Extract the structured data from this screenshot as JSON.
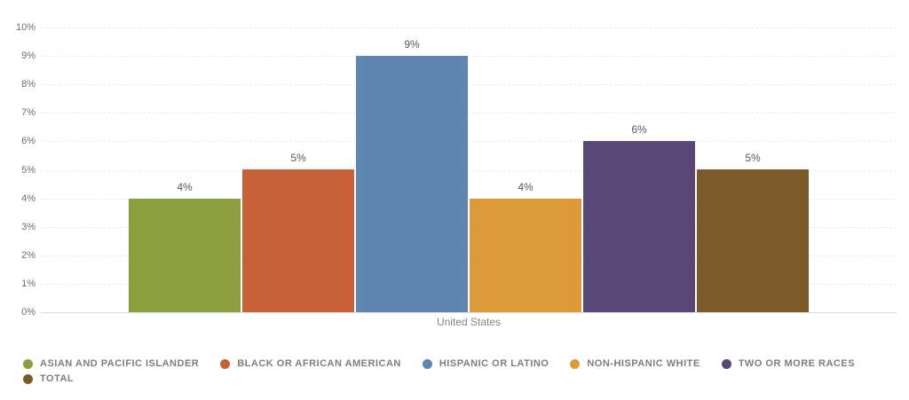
{
  "chart_data": {
    "type": "bar",
    "title": "",
    "categories": [
      "United States"
    ],
    "xlabel": "United States",
    "ylim": [
      0,
      10
    ],
    "y_ticks": [
      "0%",
      "1%",
      "2%",
      "3%",
      "4%",
      "5%",
      "6%",
      "7%",
      "8%",
      "9%",
      "10%"
    ],
    "grid": "horizontal-dashed",
    "legend_position": "bottom",
    "legend_break_index": 5,
    "series": [
      {
        "name": "ASIAN AND PACIFIC ISLANDER",
        "values": [
          4
        ],
        "label": "4%",
        "color": "#8C9E3D"
      },
      {
        "name": "BLACK OR AFRICAN AMERICAN",
        "values": [
          5
        ],
        "label": "5%",
        "color": "#C96138"
      },
      {
        "name": "HISPANIC OR LATINO",
        "values": [
          9
        ],
        "label": "9%",
        "color": "#5E86B0"
      },
      {
        "name": "NON-HISPANIC WHITE",
        "values": [
          4
        ],
        "label": "4%",
        "color": "#DD9A38"
      },
      {
        "name": "TWO OR MORE RACES",
        "values": [
          6
        ],
        "label": "6%",
        "color": "#594876"
      },
      {
        "name": "TOTAL",
        "values": [
          5
        ],
        "label": "5%",
        "color": "#7B5A29"
      }
    ]
  }
}
